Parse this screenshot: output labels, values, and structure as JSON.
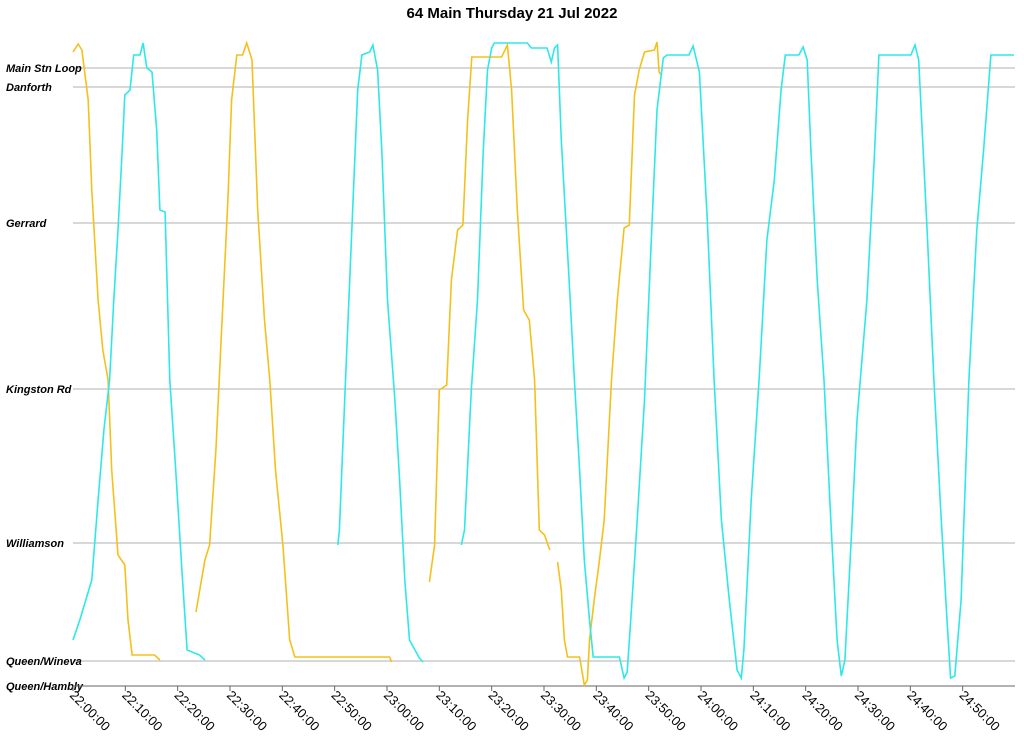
{
  "chart_data": {
    "type": "line",
    "title": "64 Main Thursday 21 Jul 2022",
    "xlim": [
      0,
      180
    ],
    "ylim": [
      0,
      644
    ],
    "grid": true,
    "xticks": [
      {
        "value": 0,
        "label": "22:00:00"
      },
      {
        "value": 10,
        "label": "22:10:00"
      },
      {
        "value": 20,
        "label": "22:20:00"
      },
      {
        "value": 30,
        "label": "22:30:00"
      },
      {
        "value": 40,
        "label": "22:40:00"
      },
      {
        "value": 50,
        "label": "22:50:00"
      },
      {
        "value": 60,
        "label": "23:00:00"
      },
      {
        "value": 70,
        "label": "23:10:00"
      },
      {
        "value": 80,
        "label": "23:20:00"
      },
      {
        "value": 90,
        "label": "23:30:00"
      },
      {
        "value": 100,
        "label": "23:40:00"
      },
      {
        "value": 110,
        "label": "23:50:00"
      },
      {
        "value": 120,
        "label": "24:00:00"
      },
      {
        "value": 130,
        "label": "24:10:00"
      },
      {
        "value": 140,
        "label": "24:20:00"
      },
      {
        "value": 150,
        "label": "24:30:00"
      },
      {
        "value": 160,
        "label": "24:40:00"
      },
      {
        "value": 170,
        "label": "24:50:00"
      }
    ],
    "yticks": [
      {
        "value": 0,
        "label": "Queen/Hambly"
      },
      {
        "value": 25,
        "label": "Queen/Wineva"
      },
      {
        "value": 143,
        "label": "Williamson"
      },
      {
        "value": 297,
        "label": "Kingston Rd"
      },
      {
        "value": 463,
        "label": "Gerrard"
      },
      {
        "value": 599,
        "label": "Danforth"
      },
      {
        "value": 618,
        "label": "Main Stn Loop"
      }
    ],
    "series": [
      {
        "color": "#f5c01c",
        "x": [
          0,
          1,
          1.7,
          2.9,
          3.6,
          4.8,
          5.7,
          6.7,
          7.4,
          8.6,
          9.9,
          10.5,
          11.3,
          15.6,
          16.6
        ],
        "values": [
          634,
          642,
          636,
          586,
          496,
          386,
          336,
          306,
          216,
          131,
          121,
          66,
          31,
          31,
          26
        ]
      },
      {
        "color": "#2ee8e8",
        "x": [
          0,
          1.3,
          3.6,
          4.8,
          5.9,
          7.0,
          7.8,
          8.6,
          9.4,
          9.9,
          10.9,
          11.6,
          12.8,
          13.4,
          14.1,
          15.1,
          16.0,
          16.6,
          17.6,
          18.5,
          19.5,
          20.8,
          21.8,
          24.2,
          25.2
        ],
        "values": [
          46,
          66,
          106,
          186,
          256,
          306,
          386,
          456,
          536,
          591,
          596,
          631,
          631,
          643,
          618,
          614,
          556,
          476,
          474,
          306,
          226,
          116,
          36,
          31,
          26
        ]
      },
      {
        "color": "#f5c01c",
        "x": [
          23.5,
          25.2,
          26.1,
          27.3,
          28.4,
          29.6,
          30.3,
          31.3,
          32.4,
          33.2,
          34.2,
          35.3,
          36.6,
          37.6,
          38.7,
          40.1,
          41.4,
          42.4,
          60.5,
          60.9
        ],
        "values": [
          74,
          126,
          141,
          236,
          356,
          486,
          586,
          631,
          631,
          643,
          626,
          476,
          366,
          306,
          216,
          141,
          46,
          29,
          29,
          24
        ]
      },
      {
        "color": "#2ee8e8",
        "x": [
          50.6,
          50.9,
          52.0,
          53.2,
          54.4,
          55.2,
          56.7,
          57.3,
          58.2,
          59.0,
          60.1,
          61.5,
          62.4,
          63.4,
          64.3,
          66.2,
          66.9
        ],
        "values": [
          141,
          156,
          296,
          446,
          596,
          631,
          634,
          641,
          616,
          536,
          386,
          286,
          206,
          106,
          46,
          28,
          24
        ]
      },
      {
        "color": "#f5c01c",
        "x": [
          68.1,
          69.1,
          70.0,
          71.4,
          72.3,
          73.5,
          74.5,
          75.4,
          76.2,
          81.9,
          83.0,
          83.8,
          84.9,
          86.1,
          87.2,
          88.2,
          89.1,
          90.1,
          91.1,
          91.6,
          92.6,
          93.3,
          93.9,
          94.5,
          96.8,
          97.7,
          98.3,
          98.7,
          99.6,
          100.6,
          101.5,
          102.9,
          104.0,
          105.3,
          106.3,
          107.3,
          108.2,
          109.2,
          111.1,
          111.6,
          112.0,
          112.4
        ],
        "values": [
          104,
          141,
          296,
          301,
          406,
          456,
          461,
          566,
          629,
          629,
          641,
          596,
          476,
          376,
          366,
          306,
          156,
          151,
          136,
          null,
          124,
          96,
          46,
          29,
          29,
          1,
          6,
          46,
          86,
          126,
          166,
          306,
          386,
          458,
          461,
          591,
          616,
          634,
          636,
          644,
          614,
          611
        ]
      },
      {
        "color": "#2ee8e8",
        "x": [
          74.2,
          74.8,
          76.1,
          77.3,
          78.4,
          79.2,
          80.0,
          80.5,
          86.8,
          87.6,
          90.6,
          91.4,
          92.0,
          92.6,
          93.3,
          94.8,
          95.8,
          96.8,
          97.7,
          98.7,
          99.4,
          104.4,
          105.3,
          105.9,
          106.7,
          107.8,
          109.2,
          110.5,
          111.6,
          112.8,
          113.5,
          117.7,
          118.5,
          119.7,
          121.2,
          122.5,
          123.9,
          125.4,
          126.9,
          127.7,
          128.2,
          129.6,
          131.1,
          132.6,
          134.0,
          135.3,
          136.1,
          138.7,
          139.5,
          140.3,
          141.0,
          142.2,
          143.5,
          144.8,
          146.0,
          146.8,
          147.5,
          148.7,
          149.8,
          151.7,
          153.1,
          154.0,
          160.1,
          160.9,
          161.6,
          163.2,
          164.5,
          165.8,
          167.0,
          167.7,
          168.5,
          169.7,
          171.2,
          172.7,
          174.0,
          175.4,
          179.8
        ],
        "values": [
          141,
          156,
          296,
          386,
          536,
          616,
          638,
          643,
          643,
          638,
          638,
          624,
          638,
          641,
          546,
          406,
          306,
          216,
          126,
          66,
          29,
          29,
          8,
          14,
          76,
          166,
          286,
          446,
          576,
          628,
          631,
          631,
          640,
          614,
          466,
          306,
          166,
          86,
          16,
          8,
          36,
          186,
          306,
          446,
          506,
          596,
          631,
          631,
          639,
          626,
          536,
          406,
          306,
          166,
          46,
          10,
          26,
          146,
          266,
          386,
          526,
          631,
          631,
          641,
          626,
          456,
          306,
          176,
          66,
          8,
          10,
          86,
          306,
          456,
          536,
          631,
          631
        ]
      }
    ]
  }
}
